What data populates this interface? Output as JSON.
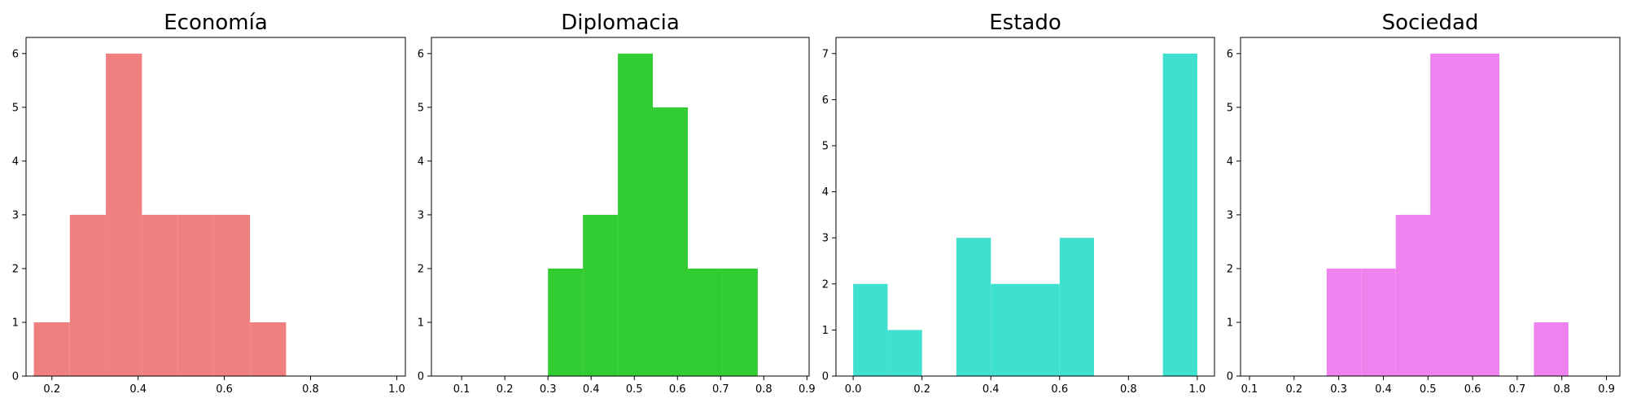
{
  "chart_data": [
    {
      "type": "bar",
      "title": "Economía",
      "color": "#f08080",
      "xlim": [
        0.14,
        1.02
      ],
      "ylim": [
        0,
        6.3
      ],
      "xticks": [
        "0.2",
        "0.4",
        "0.6",
        "0.8",
        "1.0"
      ],
      "yticks": [
        "0",
        "1",
        "2",
        "3",
        "4",
        "5",
        "6"
      ],
      "bin_edges": [
        0.158,
        0.2416,
        0.3252,
        0.4088,
        0.4924,
        0.576,
        0.6596,
        0.7432
      ],
      "counts": [
        1,
        3,
        6,
        3,
        3,
        3,
        1
      ]
    },
    {
      "type": "bar",
      "title": "Diplomacia",
      "color": "#32cd32",
      "xlim": [
        0.03,
        0.905
      ],
      "ylim": [
        0,
        6.3
      ],
      "xticks": [
        "0.1",
        "0.2",
        "0.3",
        "0.4",
        "0.5",
        "0.6",
        "0.7",
        "0.8",
        "0.9"
      ],
      "yticks": [
        "0",
        "1",
        "2",
        "3",
        "4",
        "5",
        "6"
      ],
      "bin_edges": [
        0.3,
        0.381,
        0.462,
        0.543,
        0.624,
        0.705,
        0.786
      ],
      "counts": [
        2,
        3,
        6,
        5,
        2,
        2
      ]
    },
    {
      "type": "bar",
      "title": "Estado",
      "color": "#40e0d0",
      "xlim": [
        -0.05,
        1.05
      ],
      "ylim": [
        0,
        7.35
      ],
      "xticks": [
        "0.0",
        "0.2",
        "0.4",
        "0.6",
        "0.8",
        "1.0"
      ],
      "yticks": [
        "0",
        "1",
        "2",
        "3",
        "4",
        "5",
        "6",
        "7"
      ],
      "bin_edges": [
        0.0,
        0.1,
        0.2,
        0.3,
        0.4,
        0.5,
        0.6,
        0.7,
        0.8,
        0.9,
        1.0
      ],
      "counts": [
        2,
        1,
        0,
        3,
        2,
        2,
        3,
        0,
        0,
        7
      ]
    },
    {
      "type": "bar",
      "title": "Sociedad",
      "color": "#ee82ee",
      "xlim": [
        0.08,
        0.93
      ],
      "ylim": [
        0,
        6.3
      ],
      "xticks": [
        "0.1",
        "0.2",
        "0.3",
        "0.4",
        "0.5",
        "0.6",
        "0.7",
        "0.8",
        "0.9"
      ],
      "yticks": [
        "0",
        "1",
        "2",
        "3",
        "4",
        "5",
        "6"
      ],
      "bin_edges": [
        0.273,
        0.3504,
        0.4278,
        0.5052,
        0.5826,
        0.66,
        0.7374,
        0.8148
      ],
      "counts": [
        2,
        2,
        3,
        6,
        6,
        0,
        1
      ]
    }
  ]
}
